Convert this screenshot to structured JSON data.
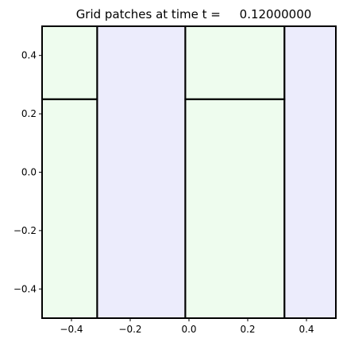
{
  "chart_data": {
    "type": "heatmap",
    "title": "Grid patches at time t =     0.12000000",
    "xlim": [
      -0.5,
      0.5
    ],
    "ylim": [
      -0.5,
      0.5
    ],
    "xticks": [
      -0.4,
      -0.2,
      0.0,
      0.2,
      0.4
    ],
    "xtick_labels": [
      "−0.4",
      "−0.2",
      "0.0",
      "0.2",
      "0.4"
    ],
    "yticks": [
      0.4,
      0.2,
      0.0,
      -0.2,
      -0.4
    ],
    "ytick_labels": [
      "0.4",
      "0.2",
      "0.0",
      "−0.2",
      "−0.4"
    ],
    "grid": false,
    "legend": "none",
    "colors": {
      "green_patch": "#eefcee",
      "blue_patch": "#ececfc",
      "border": "#000000"
    },
    "patches": [
      {
        "x0": -0.5,
        "x1": -0.3125,
        "y0": 0.25,
        "y1": 0.5,
        "color": "green_patch"
      },
      {
        "x0": -0.5,
        "x1": -0.3125,
        "y0": -0.5,
        "y1": 0.25,
        "color": "green_patch"
      },
      {
        "x0": -0.3125,
        "x1": -0.0125,
        "y0": -0.5,
        "y1": 0.5,
        "color": "blue_patch"
      },
      {
        "x0": -0.0125,
        "x1": 0.325,
        "y0": 0.25,
        "y1": 0.5,
        "color": "green_patch"
      },
      {
        "x0": -0.0125,
        "x1": 0.325,
        "y0": -0.5,
        "y1": 0.25,
        "color": "green_patch"
      },
      {
        "x0": 0.325,
        "x1": 0.5,
        "y0": -0.5,
        "y1": 0.5,
        "color": "blue_patch"
      }
    ]
  }
}
